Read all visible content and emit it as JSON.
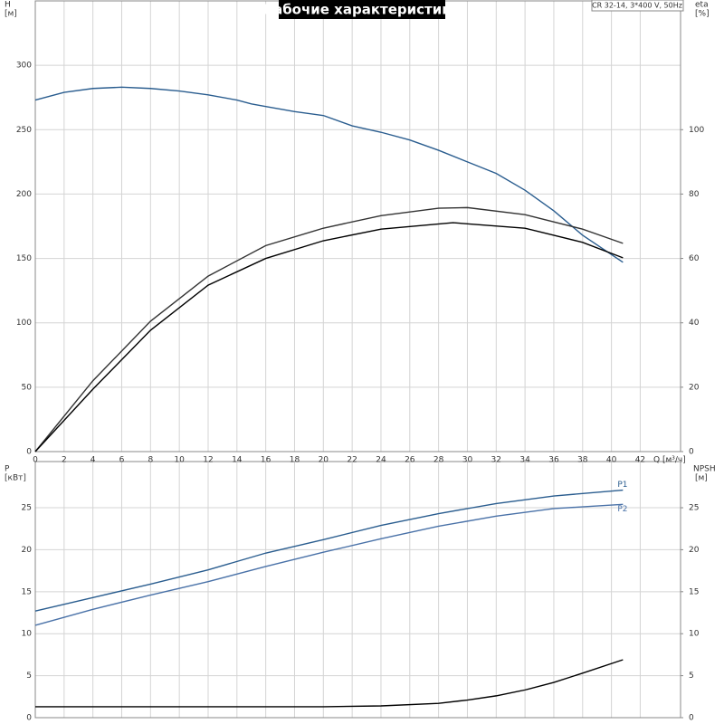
{
  "chart_data": [
    {
      "type": "line",
      "title": "Рабочие характеристики",
      "subtitle": "CR 32-14, 3*400 V, 50Hz",
      "ylabel": "H",
      "yunit": "[м]",
      "y2label": "eta",
      "y2unit": "[%]",
      "xlabel": "Q [м³/ч]",
      "xlim": [
        0,
        44.8
      ],
      "xticks": [
        0,
        2,
        4,
        6,
        8,
        10,
        12,
        14,
        16,
        18,
        20,
        22,
        24,
        26,
        28,
        30,
        32,
        34,
        36,
        38,
        40,
        42
      ],
      "ylim": [
        0,
        350
      ],
      "yticks": [
        0,
        50,
        100,
        150,
        200,
        250,
        300
      ],
      "y2lim": [
        0,
        140
      ],
      "y2ticks": [
        0,
        20,
        40,
        60,
        80,
        100
      ],
      "grid": true,
      "series": [
        {
          "color": "#2a5d8f",
          "x": [
            0,
            2,
            4,
            6,
            8,
            10,
            12,
            14,
            15,
            16,
            18,
            20,
            22,
            24,
            26,
            28,
            30,
            32,
            34,
            36,
            38,
            40.8
          ],
          "values": [
            273,
            279,
            282,
            283,
            282,
            280,
            277,
            273,
            270,
            268,
            264,
            261,
            253,
            248,
            242,
            234,
            225,
            216,
            203,
            187,
            168,
            147
          ]
        },
        {
          "color": "#333333",
          "axis": "y2",
          "x": [
            0,
            4,
            8,
            12,
            16,
            20,
            24,
            28,
            30,
            34,
            38,
            40.8
          ],
          "values": [
            0,
            22,
            40.5,
            54.5,
            64,
            69.4,
            73.3,
            75.6,
            75.8,
            73.6,
            69.1,
            64.7
          ]
        },
        {
          "color": "#000000",
          "axis": "y2",
          "x": [
            0,
            4,
            8,
            12,
            16,
            20,
            24,
            29,
            34,
            38,
            40.8
          ],
          "values": [
            0,
            19.4,
            37.7,
            51.7,
            60,
            65.5,
            69.1,
            71.1,
            69.4,
            65,
            60.2
          ]
        }
      ]
    },
    {
      "type": "line",
      "ylabel": "P",
      "yunit": "[кВт]",
      "y2label": "NPSH",
      "y2unit": "[м]",
      "xlim": [
        0,
        44.8
      ],
      "xticks": [
        0,
        2,
        4,
        6,
        8,
        10,
        12,
        14,
        16,
        18,
        20,
        22,
        24,
        26,
        28,
        30,
        32,
        34,
        36,
        38,
        40,
        42
      ],
      "ylim": [
        0,
        30.5
      ],
      "yticks": [
        0,
        5,
        10,
        15,
        20,
        25
      ],
      "y2lim": [
        0,
        30.5
      ],
      "y2ticks": [
        0,
        5,
        10,
        15,
        20,
        25
      ],
      "grid": true,
      "series": [
        {
          "name": "P1",
          "color": "#2a5d8f",
          "x": [
            0,
            4,
            8,
            12,
            16,
            20,
            24,
            28,
            32,
            36,
            40.8
          ],
          "values": [
            12.7,
            14.3,
            15.9,
            17.6,
            19.6,
            21.2,
            22.9,
            24.3,
            25.5,
            26.4,
            27.1
          ]
        },
        {
          "name": "P2",
          "color": "#4a72a8",
          "x": [
            0,
            4,
            8,
            12,
            16,
            20,
            24,
            28,
            32,
            36,
            40.8
          ],
          "values": [
            11,
            12.9,
            14.6,
            16.2,
            18,
            19.7,
            21.3,
            22.8,
            24,
            24.9,
            25.4
          ]
        },
        {
          "color": "#000000",
          "axis": "y2",
          "x": [
            0,
            10,
            20,
            24,
            28,
            30,
            32,
            34,
            36,
            38,
            40.8
          ],
          "values": [
            1.3,
            1.3,
            1.3,
            1.4,
            1.7,
            2.1,
            2.6,
            3.3,
            4.2,
            5.3,
            6.9
          ]
        }
      ]
    }
  ]
}
